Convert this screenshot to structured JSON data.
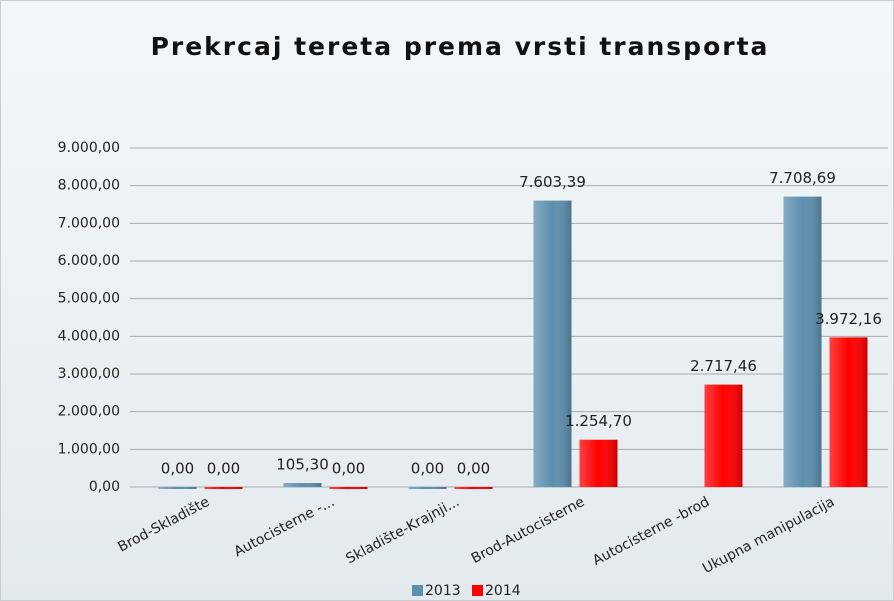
{
  "chart_data": {
    "type": "bar",
    "title": "Prekrcaj tereta prema vrsti transporta",
    "categories": [
      "Brod-Skladište",
      "Autocisterne -...",
      "Skladište-Krajnji...",
      "Brod-Autocisterne",
      "Autocisterne -brod",
      "Ukupna manipulacija"
    ],
    "series": [
      {
        "name": "2013",
        "color": "#5d8fae",
        "label_color": "#1f3b6e",
        "values": [
          0,
          105.3,
          0,
          7603.39,
          null,
          7708.69
        ],
        "value_labels": [
          "0,00",
          "105,30",
          "0,00",
          "7.603,39",
          null,
          "7.708,69"
        ]
      },
      {
        "name": "2014",
        "color": "#ff0000",
        "label_color": "#e8141c",
        "values": [
          0,
          0,
          0,
          1254.7,
          2717.46,
          3972.16
        ],
        "value_labels": [
          "0,00",
          "0,00",
          "0,00",
          "1.254,70",
          "2.717,46",
          "3.972,16"
        ]
      }
    ],
    "ylim": [
      0,
      9000
    ],
    "yticks": [
      {
        "value": 0,
        "label": "0,00"
      },
      {
        "value": 1000,
        "label": "1.000,00"
      },
      {
        "value": 2000,
        "label": "2.000,00"
      },
      {
        "value": 3000,
        "label": "3.000,00"
      },
      {
        "value": 4000,
        "label": "4.000,00"
      },
      {
        "value": 5000,
        "label": "5.000,00"
      },
      {
        "value": 6000,
        "label": "6.000,00"
      },
      {
        "value": 7000,
        "label": "7.000,00"
      },
      {
        "value": 8000,
        "label": "8.000,00"
      },
      {
        "value": 9000,
        "label": "9.000,00"
      }
    ],
    "grid": true,
    "legend": "bottom"
  }
}
